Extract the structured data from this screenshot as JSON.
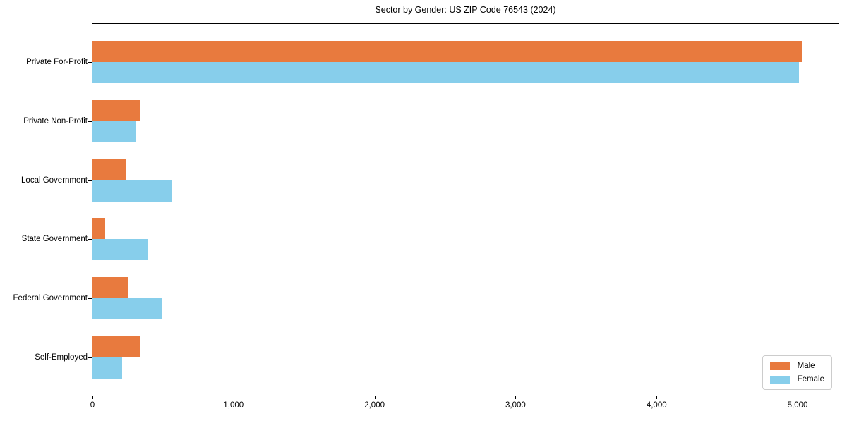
{
  "title": "Sector by Gender: US ZIP Code 76543 (2024)",
  "legend": {
    "items": [
      {
        "label": "Male",
        "color": "#e87a3e"
      },
      {
        "label": "Female",
        "color": "#87ceeb"
      }
    ]
  },
  "chart_data": {
    "type": "bar",
    "orientation": "horizontal",
    "title": "Sector by Gender: US ZIP Code 76543 (2024)",
    "categories": [
      "Private For-Profit",
      "Private Non-Profit",
      "Local Government",
      "State Government",
      "Federal Government",
      "Self-Employed"
    ],
    "series": [
      {
        "name": "Male",
        "color": "#e87a3e",
        "values": [
          5030,
          335,
          235,
          90,
          250,
          340
        ]
      },
      {
        "name": "Female",
        "color": "#87ceeb",
        "values": [
          5010,
          305,
          565,
          390,
          490,
          210
        ]
      }
    ],
    "xlabel": "",
    "ylabel": "",
    "xlim": [
      0,
      5290
    ],
    "xticks": [
      0,
      1000,
      2000,
      3000,
      4000,
      5000
    ],
    "xtick_labels": [
      "0",
      "1,000",
      "2,000",
      "3,000",
      "4,000",
      "5,000"
    ],
    "grid": false,
    "legend_position": "lower right",
    "plot_background": "#ffffff",
    "spine_color": "#000000"
  }
}
